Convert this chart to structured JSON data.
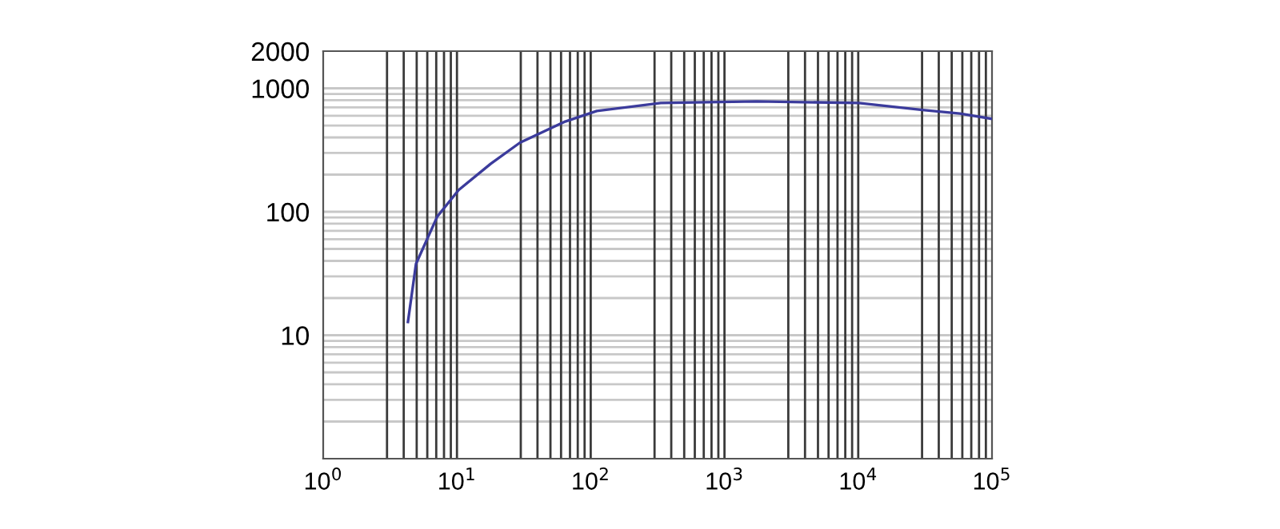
{
  "chart_data": {
    "type": "line",
    "log": "xy",
    "grid": true,
    "line_style": "solid",
    "marker": "none",
    "x": [
      4.3,
      4.94,
      7.13,
      10.3,
      17.9,
      29.6,
      64.5,
      111,
      334,
      1745,
      10090,
      30300,
      57700,
      100000
    ],
    "series": [
      {
        "color": "#3b3b9c",
        "values": [
          12.8,
          37.8,
          91.6,
          150,
          245,
          363,
          538,
          656,
          760,
          783,
          760,
          667,
          624,
          566
        ]
      }
    ],
    "xlim": [
      1,
      100000
    ],
    "ylim": [
      1,
      2000
    ],
    "xticks": [
      {
        "value": 1,
        "label": "10$^{0}$"
      },
      {
        "value": 10,
        "label": "10$^{1}$"
      },
      {
        "value": 100,
        "label": "10$^{2}$"
      },
      {
        "value": 1000,
        "label": "10$^{3}$"
      },
      {
        "value": 10000,
        "label": "10$^{4}$"
      },
      {
        "value": 100000,
        "label": "10$^{5}$"
      }
    ],
    "yticks": [
      10,
      100,
      1000,
      2000
    ]
  }
}
